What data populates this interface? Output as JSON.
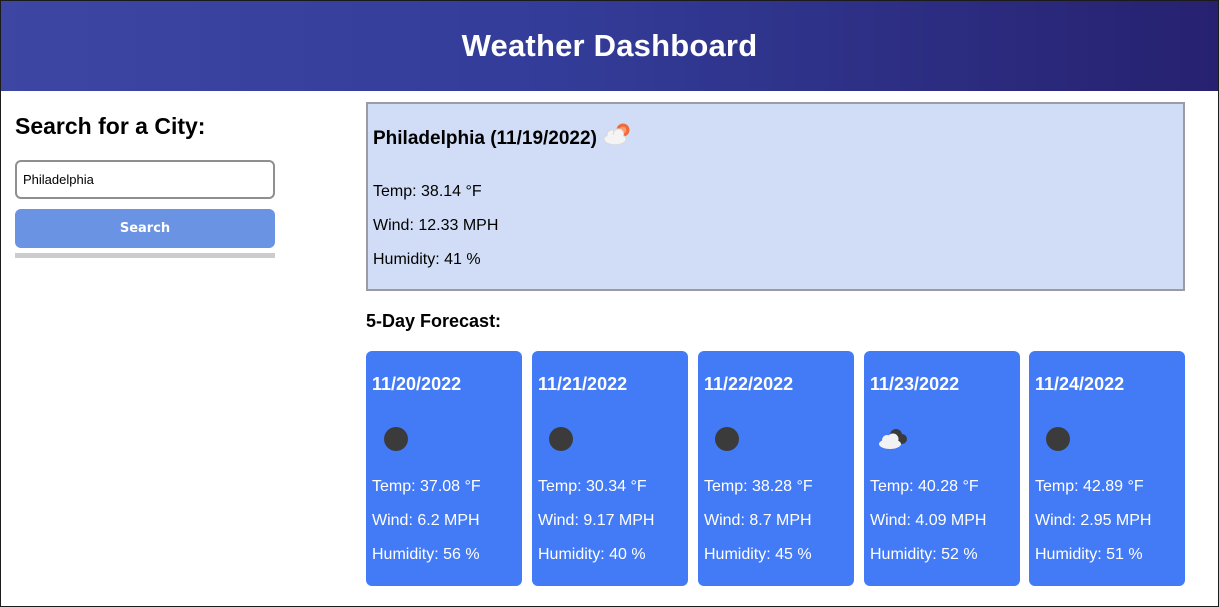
{
  "header": {
    "title": "Weather Dashboard"
  },
  "sidebar": {
    "heading": "Search for a City:",
    "search_value": "Philadelphia",
    "search_button": "Search"
  },
  "current": {
    "title": "Philadelphia (11/19/2022)",
    "icon": "partly-cloudy-day-icon",
    "temp": "Temp: 38.14 °F",
    "wind": "Wind: 12.33 MPH",
    "humidity": "Humidity: 41 %"
  },
  "forecast": {
    "heading": "5-Day Forecast:",
    "days": [
      {
        "date": "11/20/2022",
        "icon": "clear-night-icon",
        "temp": "Temp: 37.08 °F",
        "wind": "Wind: 6.2 MPH",
        "humidity": "Humidity: 56 %"
      },
      {
        "date": "11/21/2022",
        "icon": "clear-night-icon",
        "temp": "Temp: 30.34 °F",
        "wind": "Wind: 9.17 MPH",
        "humidity": "Humidity: 40 %"
      },
      {
        "date": "11/22/2022",
        "icon": "clear-night-icon",
        "temp": "Temp: 38.28 °F",
        "wind": "Wind: 8.7 MPH",
        "humidity": "Humidity: 45 %"
      },
      {
        "date": "11/23/2022",
        "icon": "partly-cloudy-night-icon",
        "temp": "Temp: 40.28 °F",
        "wind": "Wind: 4.09 MPH",
        "humidity": "Humidity: 52 %"
      },
      {
        "date": "11/24/2022",
        "icon": "clear-night-icon",
        "temp": "Temp: 42.89 °F",
        "wind": "Wind: 2.95 MPH",
        "humidity": "Humidity: 51 %"
      }
    ]
  },
  "colors": {
    "header_start": "#3d47a3",
    "header_end": "#272170",
    "card": "#437bf7",
    "current_bg": "#d1ddf6",
    "search_button": "#6b93e3"
  }
}
